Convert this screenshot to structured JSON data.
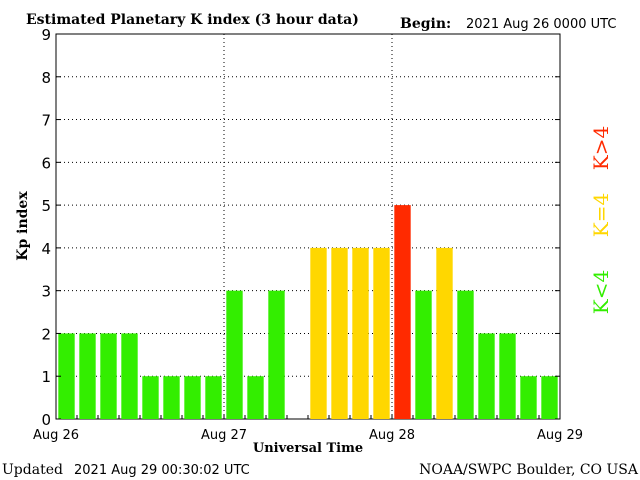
{
  "header": {
    "title": "Estimated Planetary K index (3 hour data)",
    "begin_label": "Begin:",
    "begin_value": "2021 Aug 26 0000 UTC"
  },
  "footer": {
    "updated_label": "Updated",
    "updated_value": "2021 Aug 29 00:30:02 UTC",
    "source": "NOAA/SWPC Boulder, CO USA"
  },
  "legend": {
    "items": [
      {
        "label": "K>4",
        "color": "#ff2a00"
      },
      {
        "label": "K=4",
        "color": "#ffd700"
      },
      {
        "label": "K<4",
        "color": "#33ee00"
      }
    ]
  },
  "chart_data": {
    "type": "bar",
    "xlabel": "Universal Time",
    "ylabel": "Kp index",
    "ylim": [
      0,
      9
    ],
    "yticks": [
      "0",
      "1",
      "2",
      "3",
      "4",
      "5",
      "6",
      "7",
      "8",
      "9"
    ],
    "xticks": [
      "Aug 26",
      "Aug 27",
      "Aug 28",
      "Aug 29"
    ],
    "interval_hours": 3,
    "grid": "dotted",
    "colors": {
      "low": "#33ee00",
      "equal": "#ffd700",
      "high": "#ff2a00"
    },
    "values": [
      2,
      2,
      2,
      2,
      1,
      1,
      1,
      1,
      3,
      1,
      3,
      0,
      4,
      4,
      4,
      4,
      5,
      3,
      4,
      3,
      2,
      2,
      1,
      1
    ]
  }
}
